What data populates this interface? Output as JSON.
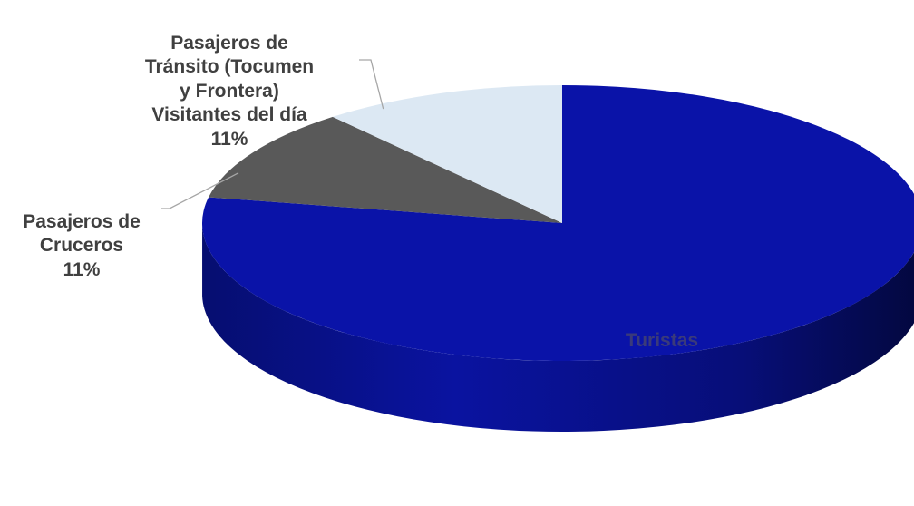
{
  "chart_data": {
    "type": "pie",
    "style": "3d",
    "slices": [
      {
        "name": "Turistas",
        "value": 78,
        "label": "Turistas",
        "percent_label": "",
        "color": "#0A13A8"
      },
      {
        "name": "Pasajeros de Cruceros",
        "value": 11,
        "label": "Pasajeros de\nCruceros",
        "percent_label": "11%",
        "color": "#595959"
      },
      {
        "name": "Pasajeros de Tránsito (Tocumen y Frontera) Visitantes del día",
        "value": 11,
        "label": "Pasajeros de\nTránsito (Tocumen\ny Frontera)\nVisitantes del día",
        "percent_label": "11%",
        "color": "#DCE8F3"
      }
    ],
    "legend": "none",
    "title": ""
  }
}
